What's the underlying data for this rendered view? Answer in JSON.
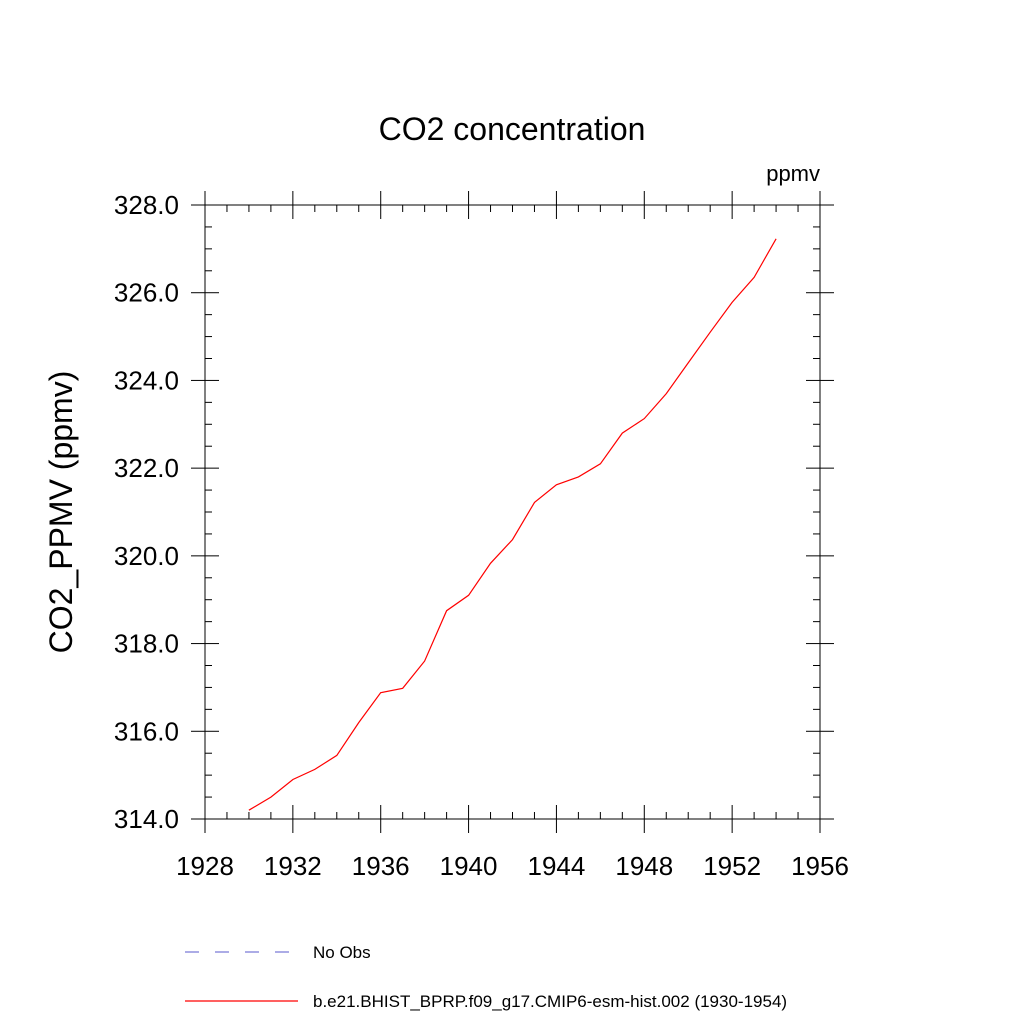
{
  "chart_data": {
    "type": "line",
    "title": "CO2 concentration",
    "units_label": "ppmv",
    "ylabel": "CO2_PPMV  (ppmv)",
    "xlabel": "",
    "xlim": [
      1928,
      1956
    ],
    "ylim": [
      314.0,
      328.0
    ],
    "x_ticks": [
      "1928",
      "1932",
      "1936",
      "1940",
      "1944",
      "1948",
      "1952",
      "1956"
    ],
    "x_tick_values": [
      1928,
      1932,
      1936,
      1940,
      1944,
      1948,
      1952,
      1956
    ],
    "y_ticks": [
      "314.0",
      "316.0",
      "318.0",
      "320.0",
      "322.0",
      "324.0",
      "326.0",
      "328.0"
    ],
    "y_tick_values": [
      314,
      316,
      318,
      320,
      322,
      324,
      326,
      328
    ],
    "grid": false,
    "legend_position": "bottom",
    "series": [
      {
        "name": "No Obs",
        "style": "dashed",
        "color": "#7b7bd6",
        "x": [],
        "y": []
      },
      {
        "name": "b.e21.BHIST_BPRP.f09_g17.CMIP6-esm-hist.002 (1930-1954)",
        "style": "solid",
        "color": "#ff0000",
        "x": [
          1930,
          1931,
          1932,
          1933,
          1934,
          1935,
          1936,
          1937,
          1938,
          1939,
          1940,
          1941,
          1942,
          1943,
          1944,
          1945,
          1946,
          1947,
          1948,
          1949,
          1950,
          1951,
          1952,
          1953,
          1954
        ],
        "y": [
          314.2,
          314.5,
          314.9,
          315.13,
          315.45,
          316.2,
          316.88,
          316.98,
          317.6,
          318.75,
          319.1,
          319.83,
          320.37,
          321.22,
          321.62,
          321.8,
          322.1,
          322.8,
          323.13,
          323.7,
          324.4,
          325.1,
          325.78,
          326.35,
          327.23
        ]
      }
    ]
  }
}
